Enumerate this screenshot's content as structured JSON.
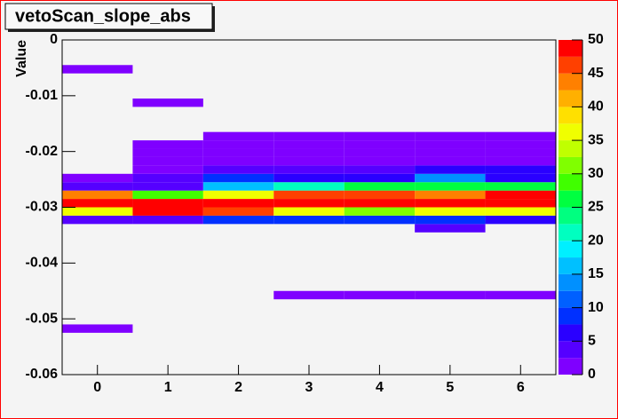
{
  "chart_data": {
    "type": "heatmap",
    "title": "vetoScan_slope_abs",
    "y_label": "Value",
    "x": [
      0,
      1,
      2,
      3,
      4,
      5,
      6
    ],
    "xlim": [
      -0.5,
      6.5
    ],
    "xticks": [
      0,
      1,
      2,
      3,
      4,
      5,
      6
    ],
    "y": [
      -0.05925,
      -0.05775,
      -0.05625,
      -0.05475,
      -0.05325,
      -0.05175,
      -0.05025,
      -0.04875,
      -0.04725,
      -0.04575,
      -0.04425,
      -0.04275,
      -0.04125,
      -0.03975,
      -0.03825,
      -0.03675,
      -0.03525,
      -0.03375,
      -0.03225,
      -0.03075,
      -0.02925,
      -0.02775,
      -0.02625,
      -0.02475,
      -0.02325,
      -0.02175,
      -0.02025,
      -0.01875,
      -0.01725,
      -0.01575,
      -0.01425,
      -0.01275,
      -0.01125,
      -0.00975,
      -0.00825,
      -0.00675,
      -0.00525,
      -0.00375,
      -0.00225,
      -0.00075
    ],
    "ylim": [
      -0.06,
      0
    ],
    "yticks": [
      -0.06,
      -0.05,
      -0.04,
      -0.03,
      -0.02,
      -0.01,
      0
    ],
    "z": [
      [
        null,
        null,
        null,
        null,
        null,
        1,
        null,
        null,
        null,
        null,
        null,
        null,
        null,
        null,
        null,
        null,
        null,
        null,
        4,
        36,
        48,
        43,
        3,
        2,
        null,
        null,
        null,
        null,
        null,
        null,
        null,
        null,
        null,
        null,
        null,
        null,
        1,
        null,
        null,
        null
      ],
      [
        null,
        null,
        null,
        null,
        null,
        null,
        null,
        null,
        null,
        null,
        null,
        null,
        null,
        null,
        null,
        null,
        null,
        null,
        4,
        48,
        49,
        28,
        3,
        3,
        2,
        2,
        2,
        2,
        null,
        null,
        null,
        null,
        1,
        null,
        null,
        null,
        null,
        null,
        null,
        null
      ],
      [
        null,
        null,
        null,
        null,
        null,
        null,
        null,
        null,
        null,
        null,
        null,
        null,
        null,
        null,
        null,
        null,
        null,
        null,
        9,
        47,
        48,
        37,
        17,
        8,
        4,
        2,
        2,
        2,
        2,
        null,
        null,
        null,
        null,
        null,
        null,
        null,
        null,
        null,
        null,
        null
      ],
      [
        null,
        null,
        null,
        null,
        null,
        null,
        null,
        null,
        null,
        1,
        null,
        null,
        null,
        null,
        null,
        null,
        null,
        null,
        8,
        36,
        48,
        46,
        22,
        7,
        4,
        2,
        2,
        2,
        2,
        null,
        null,
        null,
        null,
        null,
        null,
        null,
        null,
        null,
        null,
        null
      ],
      [
        null,
        null,
        null,
        null,
        null,
        null,
        null,
        null,
        null,
        1,
        null,
        null,
        null,
        null,
        null,
        null,
        null,
        null,
        8,
        32,
        48,
        47,
        27,
        7,
        3,
        2,
        2,
        2,
        2,
        null,
        null,
        null,
        null,
        null,
        null,
        null,
        null,
        null,
        null,
        null
      ],
      [
        null,
        null,
        null,
        null,
        null,
        null,
        null,
        null,
        null,
        1,
        null,
        null,
        null,
        null,
        null,
        null,
        null,
        3,
        9,
        37,
        48,
        43,
        26,
        14,
        7,
        2,
        2,
        2,
        2,
        null,
        null,
        null,
        null,
        null,
        null,
        null,
        null,
        null,
        null,
        null
      ],
      [
        null,
        null,
        null,
        null,
        null,
        null,
        null,
        null,
        null,
        1,
        null,
        null,
        null,
        null,
        null,
        null,
        null,
        null,
        7,
        37,
        48,
        48,
        25,
        7,
        6,
        2,
        2,
        2,
        2,
        null,
        null,
        null,
        null,
        null,
        null,
        null,
        null,
        null,
        null,
        null
      ]
    ],
    "zlim": [
      0,
      50
    ],
    "zticks": [
      0,
      5,
      10,
      15,
      20,
      25,
      30,
      35,
      40,
      45,
      50
    ],
    "palette": [
      "#7f00ff",
      "#5500ff",
      "#2a00ff",
      "#0030ff",
      "#0060ff",
      "#0090ff",
      "#00c0ff",
      "#00f0ff",
      "#00ffc0",
      "#00ff80",
      "#00ff40",
      "#40ff00",
      "#80ff00",
      "#c0ff00",
      "#f0ff00",
      "#ffe000",
      "#ffb000",
      "#ff8000",
      "#ff4000",
      "#ff0000"
    ]
  }
}
